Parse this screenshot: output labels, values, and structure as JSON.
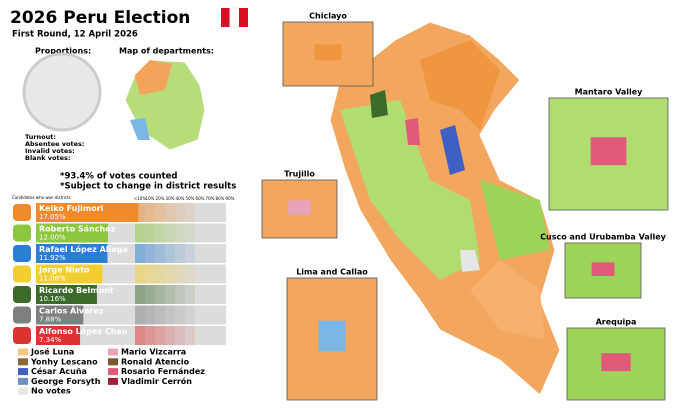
{
  "header": {
    "title": "2026 Peru Election",
    "subtitle": "First Round, 12 April 2026"
  },
  "sidebar": {
    "proportions": "Proportions:",
    "departments": "Map of departments:",
    "stats": [
      "Turnout:",
      "Absentee votes:",
      "Invalid votes:",
      "Blank votes:"
    ],
    "notes": [
      "*93.4% of votes counted",
      "*Subject to change in district results"
    ],
    "candidates_caption": "Candidates who won districts",
    "scale": [
      "<10%",
      "10%",
      "20%",
      "30%",
      "40%",
      "50%",
      "60%",
      "70%",
      "80%",
      "90%"
    ]
  },
  "candidates": [
    {
      "name": "Keiko Fujimori",
      "share": 17.05,
      "share_label": "17.05%",
      "color": "#f08a2a"
    },
    {
      "name": "Roberto Sánchez",
      "share": 12.0,
      "share_label": "12.00%",
      "color": "#8dc63f"
    },
    {
      "name": "Rafael López Aliaga",
      "share": 11.92,
      "share_label": "11.92%",
      "color": "#2a7fd4"
    },
    {
      "name": "Jorge Nieto",
      "share": 11.06,
      "share_label": "11.06%",
      "color": "#f2cf2f"
    },
    {
      "name": "Ricardo Belmont",
      "share": 10.16,
      "share_label": "10.16%",
      "color": "#3b6b2b"
    },
    {
      "name": "Carlos Álvarez",
      "share": 7.88,
      "share_label": "7.88%",
      "color": "#7f7f7f"
    },
    {
      "name": "Alfonso López Chau",
      "share": 7.34,
      "share_label": "7.34%",
      "color": "#de3232"
    }
  ],
  "legend": [
    {
      "name": "José Luna",
      "color": "#f5c97a"
    },
    {
      "name": "Yonhy Lescano",
      "color": "#8b6a3a"
    },
    {
      "name": "César Acuña",
      "color": "#3f5fc4"
    },
    {
      "name": "George Forsyth",
      "color": "#6d8fbf"
    },
    {
      "name": "No votes",
      "color": "#e6e6e6"
    },
    {
      "name": "Mario Vizcarra",
      "color": "#e8a3b8"
    },
    {
      "name": "Ronald Atencio",
      "color": "#7a5a2a"
    },
    {
      "name": "Rosario Fernández",
      "color": "#e05a7a"
    },
    {
      "name": "Vladimir Cerrón",
      "color": "#a0203a"
    }
  ],
  "insets": [
    "Chiclayo",
    "Mantaro Valley",
    "Trujillo",
    "Cusco and Urubamba Valley",
    "Lima and Callao",
    "Arequipa"
  ]
}
